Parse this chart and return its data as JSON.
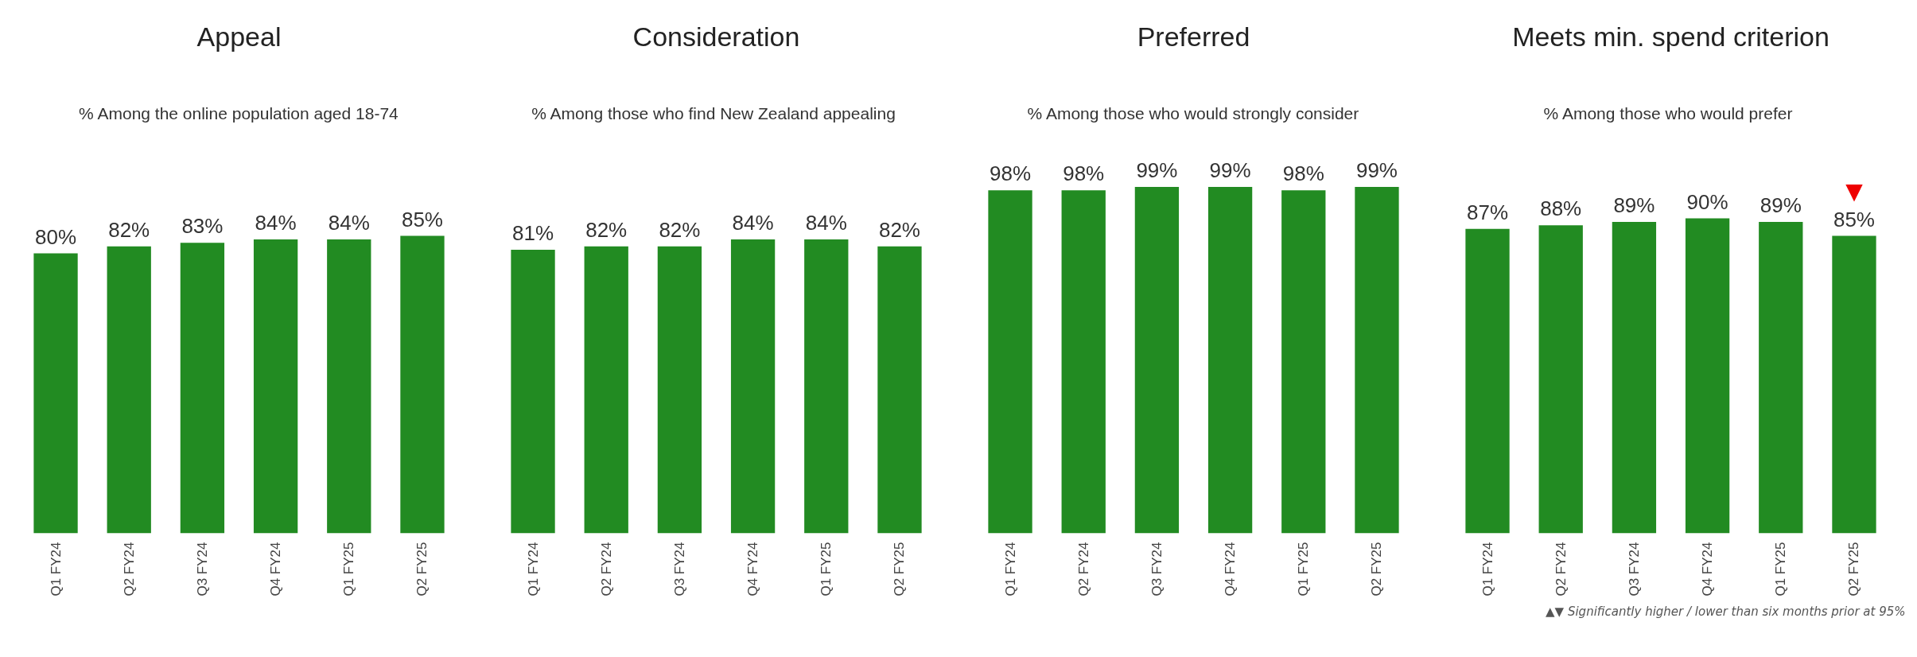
{
  "chart_data": [
    {
      "type": "bar",
      "title": "Appeal",
      "subtitle": "% Among the online population aged 18-74",
      "categories": [
        "Q1 FY24",
        "Q2 FY24",
        "Q3 FY24",
        "Q4 FY24",
        "Q1 FY25",
        "Q2 FY25"
      ],
      "values": [
        80,
        82,
        83,
        84,
        84,
        85
      ],
      "value_labels": [
        "80%",
        "82%",
        "83%",
        "84%",
        "84%",
        "85%"
      ],
      "color": "#228b22",
      "grid": false,
      "tick_labels": "x"
    },
    {
      "type": "bar",
      "title": "Consideration",
      "subtitle": "%  Among those who find New Zealand appealing",
      "categories": [
        "Q1 FY24",
        "Q2 FY24",
        "Q3 FY24",
        "Q4 FY24",
        "Q1 FY25",
        "Q2 FY25"
      ],
      "values": [
        81,
        82,
        82,
        84,
        84,
        82
      ],
      "value_labels": [
        "81%",
        "82%",
        "82%",
        "84%",
        "84%",
        "82%"
      ],
      "color": "#228b22",
      "grid": false,
      "tick_labels": "x"
    },
    {
      "type": "bar",
      "title": "Preferred",
      "subtitle": "% Among those who would strongly consider",
      "categories": [
        "Q1 FY24",
        "Q2 FY24",
        "Q3 FY24",
        "Q4 FY24",
        "Q1 FY25",
        "Q2 FY25"
      ],
      "values": [
        98,
        98,
        99,
        99,
        98,
        99
      ],
      "value_labels": [
        "98%",
        "98%",
        "99%",
        "99%",
        "98%",
        "99%"
      ],
      "color": "#228b22",
      "grid": false,
      "tick_labels": "x"
    },
    {
      "type": "bar",
      "title": "Meets min. spend criterion",
      "subtitle": "%  Among those who would prefer",
      "categories": [
        "Q1 FY24",
        "Q2 FY24",
        "Q3 FY24",
        "Q4 FY24",
        "Q1 FY25",
        "Q2 FY25"
      ],
      "values": [
        87,
        88,
        89,
        90,
        89,
        85
      ],
      "value_labels": [
        "87%",
        "88%",
        "89%",
        "90%",
        "89%",
        "85%"
      ],
      "color": "#228b22",
      "grid": false,
      "tick_labels": "x",
      "annotations": [
        {
          "text": "▼",
          "x": "Q2 FY25",
          "y": 85
        },
        "▲▼ Significantly higher / lower than six months prior at 95%"
      ]
    }
  ]
}
